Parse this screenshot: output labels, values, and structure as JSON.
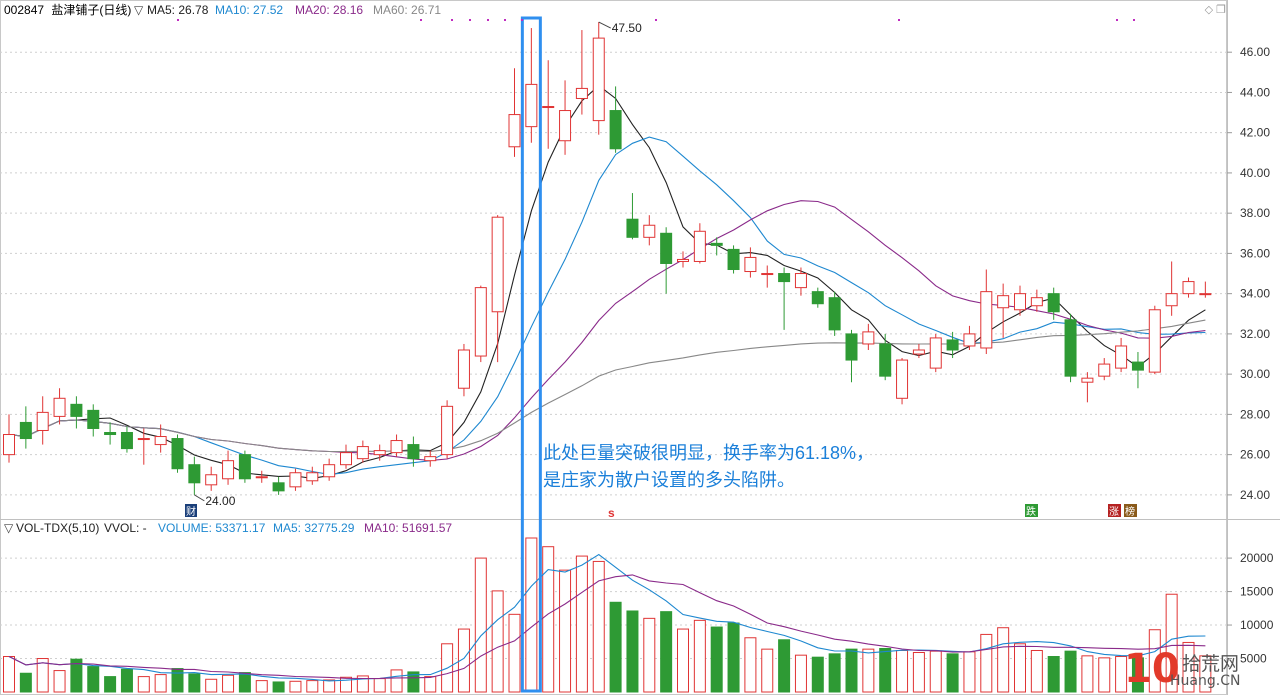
{
  "header": {
    "code": "002847",
    "name": "盐津铺子(日线)",
    "ma_indicators": [
      {
        "label": "MA5: 26.78",
        "color": "#222222"
      },
      {
        "label": "MA10: 27.52",
        "color": "#1e88d0"
      },
      {
        "label": "MA20: 28.16",
        "color": "#8a2a8a"
      },
      {
        "label": "MA60: 26.71",
        "color": "#888888"
      }
    ]
  },
  "vol_header": {
    "title": "VOL-TDX(5,10)",
    "vvol": "VVOL: -",
    "volume": "VOLUME: 53371.17",
    "ma5": "MA5: 32775.29",
    "ma10": "MA10: 51691.57"
  },
  "annotation": {
    "line1": "此处巨量突破很明显，换手率为61.18%，",
    "line2": "是庄家为散户设置的多头陷阱。"
  },
  "markers": {
    "high": "47.50",
    "low": "24.00",
    "cai": "财",
    "s": "s",
    "die": "跌",
    "zhang": "涨",
    "bang": "榜"
  },
  "watermark": {
    "num": "10",
    "cn": "拾荒网",
    "en": "Huang.CN"
  },
  "colors": {
    "up": "#e03434",
    "down": "#2e9a34",
    "ma5": "#222222",
    "ma10": "#1e88d0",
    "ma20": "#8a2a8a",
    "ma60": "#888888",
    "highlight": "#2f8fef"
  },
  "chart_data": {
    "type": "candlestick",
    "price_ylim": [
      23,
      47.6
    ],
    "price_ticks": [
      24,
      26,
      28,
      30,
      32,
      34,
      36,
      38,
      40,
      42,
      44,
      46
    ],
    "volume_ylim": [
      0,
      23000
    ],
    "volume_ticks": [
      5000,
      10000,
      15000,
      20000
    ],
    "highlight_index": 31,
    "candles": [
      {
        "o": 26.0,
        "c": 27.0,
        "h": 28.0,
        "l": 25.6,
        "v": 5300
      },
      {
        "o": 27.6,
        "c": 26.8,
        "h": 28.4,
        "l": 26.3,
        "v": 2800
      },
      {
        "o": 27.2,
        "c": 28.1,
        "h": 28.9,
        "l": 26.5,
        "v": 5000
      },
      {
        "o": 27.9,
        "c": 28.8,
        "h": 29.3,
        "l": 27.5,
        "v": 3200
      },
      {
        "o": 28.5,
        "c": 27.9,
        "h": 28.9,
        "l": 27.3,
        "v": 4900
      },
      {
        "o": 28.2,
        "c": 27.3,
        "h": 28.5,
        "l": 26.9,
        "v": 3800
      },
      {
        "o": 27.1,
        "c": 27.0,
        "h": 27.6,
        "l": 26.5,
        "v": 2300
      },
      {
        "o": 27.1,
        "c": 26.3,
        "h": 27.4,
        "l": 26.1,
        "v": 3400
      },
      {
        "o": 26.8,
        "c": 26.8,
        "h": 27.3,
        "l": 25.5,
        "v": 2300
      },
      {
        "o": 26.5,
        "c": 26.9,
        "h": 27.5,
        "l": 26.1,
        "v": 2600
      },
      {
        "o": 26.8,
        "c": 25.3,
        "h": 27.0,
        "l": 25.1,
        "v": 3500
      },
      {
        "o": 25.5,
        "c": 24.6,
        "h": 25.9,
        "l": 24.0,
        "v": 2700
      },
      {
        "o": 24.5,
        "c": 25.0,
        "h": 25.4,
        "l": 24.2,
        "v": 1900
      },
      {
        "o": 24.8,
        "c": 25.7,
        "h": 26.2,
        "l": 24.5,
        "v": 2500
      },
      {
        "o": 26.0,
        "c": 24.8,
        "h": 26.2,
        "l": 24.6,
        "v": 2900
      },
      {
        "o": 24.9,
        "c": 24.9,
        "h": 25.2,
        "l": 24.6,
        "v": 1700
      },
      {
        "o": 24.6,
        "c": 24.2,
        "h": 24.9,
        "l": 24.0,
        "v": 1500
      },
      {
        "o": 24.4,
        "c": 25.1,
        "h": 25.3,
        "l": 24.2,
        "v": 1600
      },
      {
        "o": 24.7,
        "c": 25.1,
        "h": 25.4,
        "l": 24.5,
        "v": 1700
      },
      {
        "o": 24.9,
        "c": 25.5,
        "h": 25.8,
        "l": 24.7,
        "v": 1800
      },
      {
        "o": 25.5,
        "c": 26.1,
        "h": 26.5,
        "l": 25.3,
        "v": 2200
      },
      {
        "o": 25.8,
        "c": 26.4,
        "h": 26.7,
        "l": 25.6,
        "v": 2400
      },
      {
        "o": 26.0,
        "c": 26.2,
        "h": 26.5,
        "l": 25.7,
        "v": 2000
      },
      {
        "o": 26.1,
        "c": 26.7,
        "h": 27.0,
        "l": 25.9,
        "v": 3300
      },
      {
        "o": 26.5,
        "c": 25.8,
        "h": 26.9,
        "l": 25.4,
        "v": 3000
      },
      {
        "o": 25.7,
        "c": 25.9,
        "h": 26.2,
        "l": 25.4,
        "v": 2300
      },
      {
        "o": 26.0,
        "c": 28.4,
        "h": 28.7,
        "l": 25.8,
        "v": 7200
      },
      {
        "o": 29.3,
        "c": 31.2,
        "h": 31.5,
        "l": 28.9,
        "v": 9400
      },
      {
        "o": 30.9,
        "c": 34.3,
        "h": 34.4,
        "l": 30.6,
        "v": 20000
      },
      {
        "o": 33.1,
        "c": 37.8,
        "h": 37.9,
        "l": 30.6,
        "v": 15100
      },
      {
        "o": 41.3,
        "c": 42.9,
        "h": 45.2,
        "l": 40.8,
        "v": 11600
      },
      {
        "o": 42.3,
        "c": 44.4,
        "h": 47.2,
        "l": 41.5,
        "v": 23000
      },
      {
        "o": 43.3,
        "c": 43.3,
        "h": 45.6,
        "l": 41.2,
        "v": 21700
      },
      {
        "o": 41.6,
        "c": 43.1,
        "h": 44.6,
        "l": 40.9,
        "v": 18200
      },
      {
        "o": 43.7,
        "c": 44.2,
        "h": 47.1,
        "l": 42.9,
        "v": 20300
      },
      {
        "o": 42.6,
        "c": 46.7,
        "h": 47.5,
        "l": 41.9,
        "v": 19500
      },
      {
        "o": 43.1,
        "c": 41.2,
        "h": 44.3,
        "l": 41.0,
        "v": 13400
      },
      {
        "o": 37.7,
        "c": 36.8,
        "h": 39.0,
        "l": 36.7,
        "v": 12100
      },
      {
        "o": 36.8,
        "c": 37.4,
        "h": 37.9,
        "l": 36.4,
        "v": 11000
      },
      {
        "o": 37.0,
        "c": 35.5,
        "h": 37.3,
        "l": 34.0,
        "v": 12000
      },
      {
        "o": 35.6,
        "c": 35.7,
        "h": 36.1,
        "l": 35.3,
        "v": 9400
      },
      {
        "o": 35.6,
        "c": 37.1,
        "h": 37.5,
        "l": 35.5,
        "v": 10700
      },
      {
        "o": 36.5,
        "c": 36.4,
        "h": 36.8,
        "l": 35.9,
        "v": 9700
      },
      {
        "o": 36.2,
        "c": 35.2,
        "h": 36.4,
        "l": 35.0,
        "v": 10300
      },
      {
        "o": 35.1,
        "c": 35.8,
        "h": 36.3,
        "l": 34.8,
        "v": 8100
      },
      {
        "o": 35.0,
        "c": 35.0,
        "h": 35.4,
        "l": 34.3,
        "v": 6400
      },
      {
        "o": 35.0,
        "c": 34.6,
        "h": 35.3,
        "l": 32.2,
        "v": 7800
      },
      {
        "o": 34.3,
        "c": 35.0,
        "h": 35.3,
        "l": 33.9,
        "v": 5500
      },
      {
        "o": 34.1,
        "c": 33.5,
        "h": 34.3,
        "l": 33.3,
        "v": 5200
      },
      {
        "o": 33.8,
        "c": 32.2,
        "h": 34.1,
        "l": 31.9,
        "v": 5700
      },
      {
        "o": 32.0,
        "c": 30.7,
        "h": 32.2,
        "l": 29.6,
        "v": 6400
      },
      {
        "o": 31.5,
        "c": 32.1,
        "h": 32.5,
        "l": 31.2,
        "v": 6400
      },
      {
        "o": 31.5,
        "c": 29.9,
        "h": 32.0,
        "l": 29.7,
        "v": 6500
      },
      {
        "o": 28.8,
        "c": 30.7,
        "h": 30.8,
        "l": 28.5,
        "v": 6200
      },
      {
        "o": 31.0,
        "c": 31.2,
        "h": 31.5,
        "l": 30.8,
        "v": 5900
      },
      {
        "o": 30.3,
        "c": 31.8,
        "h": 32.0,
        "l": 30.1,
        "v": 6100
      },
      {
        "o": 31.7,
        "c": 31.2,
        "h": 32.1,
        "l": 30.8,
        "v": 5700
      },
      {
        "o": 31.4,
        "c": 32.0,
        "h": 32.4,
        "l": 31.2,
        "v": 6000
      },
      {
        "o": 31.3,
        "c": 34.1,
        "h": 35.2,
        "l": 31.0,
        "v": 8600
      },
      {
        "o": 33.3,
        "c": 33.9,
        "h": 34.5,
        "l": 31.8,
        "v": 9600
      },
      {
        "o": 33.2,
        "c": 34.0,
        "h": 34.4,
        "l": 32.9,
        "v": 7200
      },
      {
        "o": 33.4,
        "c": 33.8,
        "h": 34.2,
        "l": 33.1,
        "v": 6200
      },
      {
        "o": 34.0,
        "c": 33.1,
        "h": 34.3,
        "l": 32.7,
        "v": 5300
      },
      {
        "o": 32.7,
        "c": 29.9,
        "h": 33.0,
        "l": 29.6,
        "v": 6100
      },
      {
        "o": 29.6,
        "c": 29.8,
        "h": 30.1,
        "l": 28.6,
        "v": 5400
      },
      {
        "o": 29.9,
        "c": 30.5,
        "h": 30.8,
        "l": 29.7,
        "v": 5100
      },
      {
        "o": 30.3,
        "c": 31.4,
        "h": 31.8,
        "l": 30.1,
        "v": 5300
      },
      {
        "o": 30.6,
        "c": 30.2,
        "h": 31.1,
        "l": 29.3,
        "v": 5100
      },
      {
        "o": 30.1,
        "c": 33.2,
        "h": 33.4,
        "l": 30.0,
        "v": 9300
      },
      {
        "o": 33.4,
        "c": 34.0,
        "h": 35.6,
        "l": 32.9,
        "v": 14600
      },
      {
        "o": 34.0,
        "c": 34.6,
        "h": 34.8,
        "l": 33.8,
        "v": 7400
      },
      {
        "o": 34.0,
        "c": 34.0,
        "h": 34.6,
        "l": 33.8,
        "v": 5400
      }
    ]
  }
}
